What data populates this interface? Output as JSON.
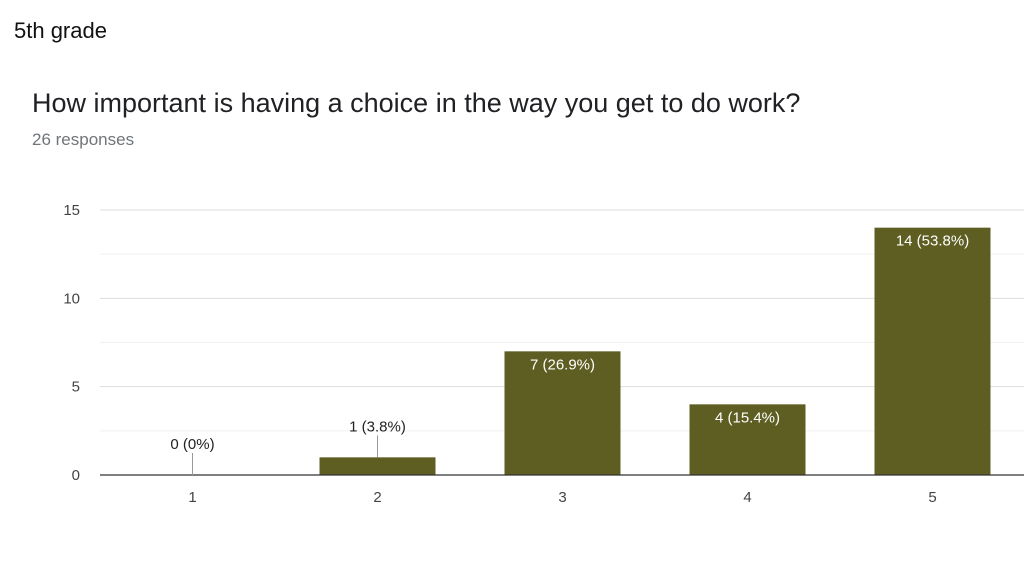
{
  "header": {
    "title": "5th grade"
  },
  "chart_data": {
    "type": "bar",
    "title": "How important is having a choice in the way you get to do work?",
    "subtitle": "26 responses",
    "categories": [
      "1",
      "2",
      "3",
      "4",
      "5"
    ],
    "values": [
      0,
      1,
      7,
      4,
      14
    ],
    "data_labels": [
      "0 (0%)",
      "1 (3.8%)",
      "7 (26.9%)",
      "4 (15.4%)",
      "14 (53.8%)"
    ],
    "ylim": [
      0,
      15
    ],
    "yticks": [
      0,
      5,
      10,
      15
    ],
    "xlabel": "",
    "ylabel": "",
    "grid": true,
    "bar_color": "#5e5e22"
  }
}
